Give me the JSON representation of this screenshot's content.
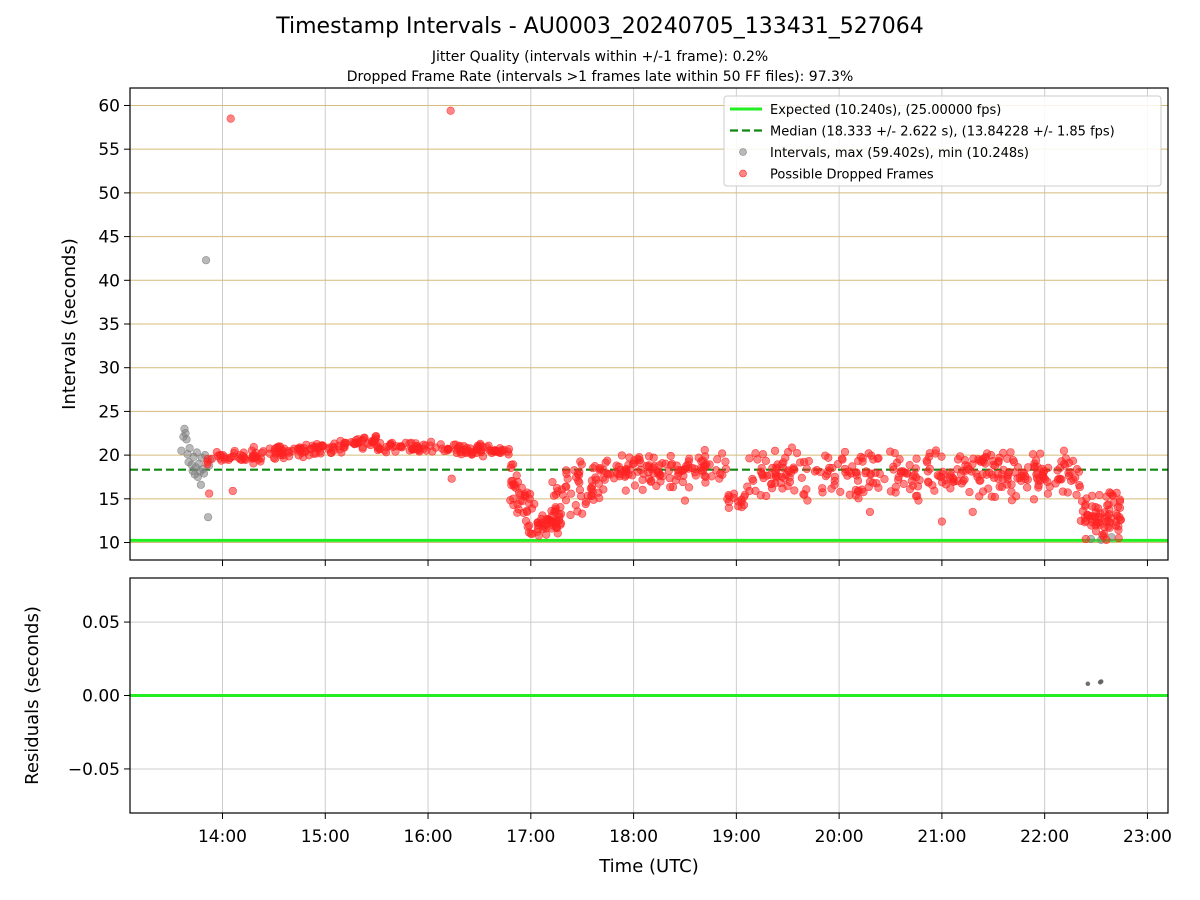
{
  "chart_data": {
    "title": "Timestamp Intervals - AU0003_20240705_133431_527064",
    "subtitle_lines": [
      "Jitter Quality (intervals within +/-1 frame): 0.2%",
      "Dropped Frame Rate (intervals >1 frames late within 50 FF files): 97.3%"
    ],
    "xlabel": "Time (UTC)",
    "x_tick_labels": [
      "14:00",
      "15:00",
      "16:00",
      "17:00",
      "18:00",
      "19:00",
      "20:00",
      "21:00",
      "22:00",
      "23:00"
    ],
    "x_range_hours": [
      13.1,
      23.2
    ],
    "panels": [
      {
        "name": "intervals",
        "type": "scatter",
        "ylabel": "Intervals (seconds)",
        "ylim": [
          8,
          62
        ],
        "y_ticks": [
          10,
          15,
          20,
          25,
          30,
          35,
          40,
          45,
          50,
          55,
          60
        ],
        "y_tick_labels": [
          "10",
          "15",
          "20",
          "25",
          "30",
          "35",
          "40",
          "45",
          "50",
          "55",
          "60"
        ],
        "grid": "both",
        "legend_position": "top-right",
        "series": [
          {
            "name": "Expected (10.240s), (25.00000 fps)",
            "kind": "hline",
            "value": 10.24,
            "color": "#22ee22"
          },
          {
            "name": "Median (18.333 +/- 2.622 s), (13.84228 +/- 1.85 fps)",
            "kind": "hline-dashed",
            "value": 18.333,
            "color": "#118811"
          },
          {
            "name": "Intervals, max (59.402s), min (10.248s)",
            "kind": "scatter",
            "color": "#808080",
            "points": [
              [
                13.6,
                20.5
              ],
              [
                13.62,
                22.1
              ],
              [
                13.63,
                23.0
              ],
              [
                13.64,
                22.5
              ],
              [
                13.65,
                21.8
              ],
              [
                13.66,
                20.1
              ],
              [
                13.67,
                19.2
              ],
              [
                13.68,
                20.8
              ],
              [
                13.7,
                18.9
              ],
              [
                13.71,
                18.2
              ],
              [
                13.72,
                19.8
              ],
              [
                13.73,
                17.8
              ],
              [
                13.74,
                18.6
              ],
              [
                13.75,
                20.3
              ],
              [
                13.76,
                17.5
              ],
              [
                13.77,
                19.0
              ],
              [
                13.78,
                18.1
              ],
              [
                13.79,
                16.6
              ],
              [
                13.8,
                19.7
              ],
              [
                13.81,
                18.4
              ],
              [
                13.82,
                17.9
              ],
              [
                13.83,
                20.0
              ],
              [
                13.84,
                42.3
              ],
              [
                13.86,
                12.9
              ],
              [
                13.87,
                18.8
              ],
              [
                13.88,
                19.5
              ],
              [
                22.45,
                10.4
              ],
              [
                22.55,
                10.3
              ],
              [
                22.65,
                10.6
              ]
            ]
          },
          {
            "name": "Possible Dropped Frames",
            "kind": "scatter",
            "color": "#ff2222",
            "segments": [
              {
                "x0": 13.85,
                "x1": 14.4,
                "y0": 19.5,
                "y1": 20.0,
                "spread": 0.8,
                "count": 45
              },
              {
                "x0": 14.4,
                "x1": 14.9,
                "y0": 20.2,
                "y1": 20.7,
                "spread": 0.6,
                "count": 45
              },
              {
                "x0": 14.9,
                "x1": 15.5,
                "y0": 20.8,
                "y1": 21.6,
                "spread": 0.6,
                "count": 55
              },
              {
                "x0": 15.5,
                "x1": 16.6,
                "y0": 21.0,
                "y1": 20.5,
                "spread": 0.5,
                "count": 90
              },
              {
                "x0": 16.6,
                "x1": 16.8,
                "y0": 20.6,
                "y1": 20.6,
                "spread": 0.5,
                "count": 18
              },
              {
                "x0": 16.8,
                "x1": 17.05,
                "y0": 17.5,
                "y1": 12.0,
                "spread": 1.8,
                "count": 40
              },
              {
                "x0": 17.05,
                "x1": 17.3,
                "y0": 11.8,
                "y1": 12.5,
                "spread": 0.9,
                "count": 40
              },
              {
                "x0": 17.2,
                "x1": 17.7,
                "y0": 15.0,
                "y1": 17.5,
                "spread": 2.2,
                "count": 55
              },
              {
                "x0": 17.7,
                "x1": 18.9,
                "y0": 18.0,
                "y1": 18.5,
                "spread": 1.5,
                "count": 120
              },
              {
                "x0": 18.9,
                "x1": 19.1,
                "y0": 15.0,
                "y1": 15.0,
                "spread": 1.0,
                "count": 15
              },
              {
                "x0": 19.1,
                "x1": 22.35,
                "y0": 17.8,
                "y1": 17.8,
                "spread": 2.0,
                "count": 320
              },
              {
                "x0": 22.35,
                "x1": 22.75,
                "y0": 12.8,
                "y1": 13.2,
                "spread": 1.8,
                "count": 70
              }
            ],
            "outliers": [
              [
                14.08,
                58.5
              ],
              [
                16.22,
                59.4
              ],
              [
                14.1,
                15.9
              ],
              [
                13.87,
                15.6
              ],
              [
                16.23,
                17.3
              ],
              [
                17.0,
                11.0
              ],
              [
                17.15,
                10.9
              ],
              [
                22.4,
                10.4
              ],
              [
                22.6,
                10.3
              ],
              [
                22.72,
                10.5
              ],
              [
                21.0,
                12.4
              ],
              [
                20.3,
                13.5
              ],
              [
                18.5,
                14.8
              ],
              [
                17.5,
                13.3
              ],
              [
                21.3,
                13.5
              ]
            ]
          }
        ]
      },
      {
        "name": "residuals",
        "type": "scatter",
        "ylabel": "Residuals (seconds)",
        "ylim": [
          -0.08,
          0.08
        ],
        "y_ticks": [
          -0.05,
          0.0,
          0.05
        ],
        "y_tick_labels": [
          "−0.05",
          "0.00",
          "0.05"
        ],
        "grid": "both",
        "series": [
          {
            "name": "zero",
            "kind": "hline",
            "value": 0.0,
            "color": "#22ee22"
          },
          {
            "name": "residual points",
            "kind": "scatter",
            "color": "#606060",
            "points": [
              [
                22.42,
                0.008
              ],
              [
                22.54,
                0.009
              ],
              [
                22.55,
                0.0095
              ]
            ]
          }
        ]
      }
    ],
    "legend_entries": [
      "Expected (10.240s), (25.00000 fps)",
      "Median (18.333 +/- 2.622 s), (13.84228 +/- 1.85 fps)",
      "Intervals, max (59.402s), min (10.248s)",
      "Possible Dropped Frames"
    ],
    "colors": {
      "expected": "#22ee22",
      "median": "#118811",
      "intervals": "#808080",
      "dropped": "#ff2222",
      "ygrid_top": "#d4bc7a",
      "grid": "#cccccc"
    }
  }
}
